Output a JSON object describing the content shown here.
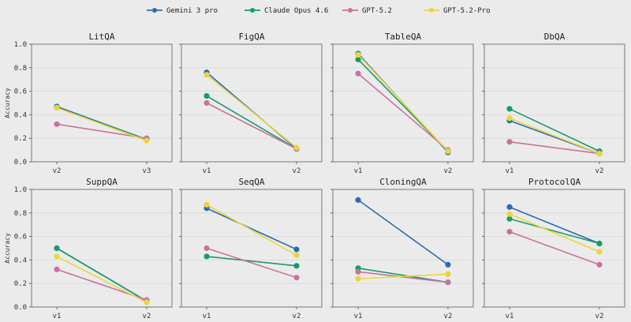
{
  "chart_data": {
    "type": "line",
    "ylabel": "Accuracy",
    "ylim": [
      0,
      1.0
    ],
    "yticks": [
      "0.0",
      "0.2",
      "0.4",
      "0.6",
      "0.8",
      "1.0"
    ],
    "grid": true,
    "legend_position": "top-center",
    "series_names": [
      "Gemini 3 pro",
      "Claude Opus 4.6",
      "GPT-5.2",
      "GPT-5.2-Pro"
    ],
    "colors": [
      "#2b6cb0",
      "#1a9a6c",
      "#c8739f",
      "#e8d63c"
    ],
    "panels": [
      {
        "title": "LitQA",
        "categories": [
          "v2",
          "v3"
        ],
        "series": [
          [
            0.47,
            0.19
          ],
          [
            0.46,
            0.19
          ],
          [
            0.32,
            0.2
          ],
          [
            0.46,
            0.18
          ]
        ]
      },
      {
        "title": "FigQA",
        "categories": [
          "v1",
          "v2"
        ],
        "series": [
          [
            0.76,
            0.11
          ],
          [
            0.56,
            0.11
          ],
          [
            0.5,
            0.11
          ],
          [
            0.74,
            0.12
          ]
        ]
      },
      {
        "title": "TableQA",
        "categories": [
          "v1",
          "v2"
        ],
        "series": [
          [
            0.92,
            0.08
          ],
          [
            0.87,
            0.09
          ],
          [
            0.75,
            0.1
          ],
          [
            0.91,
            0.09
          ]
        ]
      },
      {
        "title": "DbQA",
        "categories": [
          "v1",
          "v2"
        ],
        "series": [
          [
            0.35,
            0.07
          ],
          [
            0.45,
            0.09
          ],
          [
            0.17,
            0.07
          ],
          [
            0.37,
            0.07
          ]
        ]
      },
      {
        "title": "SuppQA",
        "categories": [
          "v1",
          "v2"
        ],
        "series": [
          [
            0.5,
            0.05
          ],
          [
            0.5,
            0.05
          ],
          [
            0.32,
            0.06
          ],
          [
            0.43,
            0.04
          ]
        ]
      },
      {
        "title": "SeqQA",
        "categories": [
          "v1",
          "v2"
        ],
        "series": [
          [
            0.84,
            0.49
          ],
          [
            0.43,
            0.35
          ],
          [
            0.5,
            0.25
          ],
          [
            0.87,
            0.44
          ]
        ]
      },
      {
        "title": "CloningQA",
        "categories": [
          "v1",
          "v2"
        ],
        "series": [
          [
            0.91,
            0.36
          ],
          [
            0.33,
            0.21
          ],
          [
            0.3,
            0.21
          ],
          [
            0.24,
            0.28
          ]
        ]
      },
      {
        "title": "ProtocolQA",
        "categories": [
          "v1",
          "v2"
        ],
        "series": [
          [
            0.85,
            0.54
          ],
          [
            0.75,
            0.54
          ],
          [
            0.64,
            0.36
          ],
          [
            0.79,
            0.47
          ]
        ]
      }
    ]
  }
}
